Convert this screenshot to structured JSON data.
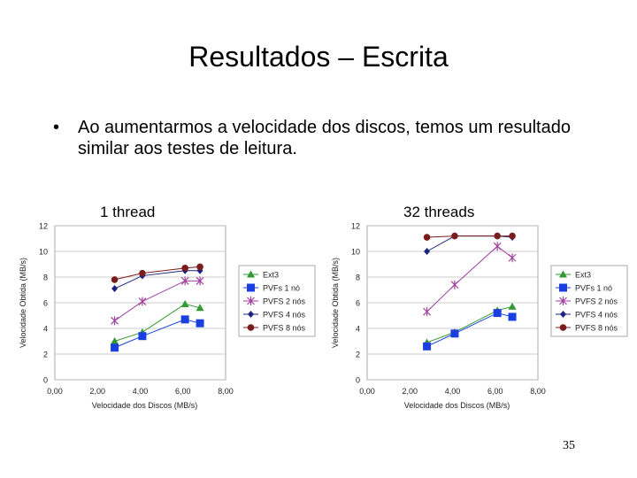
{
  "slide": {
    "title": "Resultados – Escrita",
    "bullet_symbol": "•",
    "bullet_text": "Ao aumentarmos a velocidade dos discos, temos um resultado similar aos testes de leitura.",
    "page_number": "35"
  },
  "chart_data": [
    {
      "type": "line",
      "title": "1 thread",
      "xlabel": "Velocidade dos Discos (MB/s)",
      "ylabel": "Velocidade Obtida (MB/s)",
      "xlim": [
        0,
        8
      ],
      "ylim": [
        0,
        12
      ],
      "x_ticks": [
        "0,00",
        "2,00",
        "4,00",
        "6,00",
        "8,00"
      ],
      "y_ticks": [
        "0",
        "2",
        "4",
        "6",
        "8",
        "10",
        "12"
      ],
      "grid": true,
      "legend_position": "right",
      "series": [
        {
          "name": "Ext3",
          "color": "#339933",
          "marker": "triangle",
          "x": [
            2.8,
            4.1,
            6.1,
            6.8
          ],
          "y": [
            3.0,
            3.7,
            5.9,
            5.6
          ]
        },
        {
          "name": "PVFs 1 nó",
          "color": "#1a3fe0",
          "marker": "square",
          "x": [
            2.8,
            4.1,
            6.1,
            6.8
          ],
          "y": [
            2.5,
            3.4,
            4.7,
            4.4
          ]
        },
        {
          "name": "PVFS 2 nós",
          "color": "#a040a0",
          "marker": "star",
          "x": [
            2.8,
            4.1,
            6.1,
            6.8
          ],
          "y": [
            4.6,
            6.1,
            7.7,
            7.7
          ]
        },
        {
          "name": "PVFS 4 nós",
          "color": "#1a237e",
          "marker": "diamond",
          "x": [
            2.8,
            4.1,
            6.1,
            6.8
          ],
          "y": [
            7.1,
            8.1,
            8.5,
            8.5
          ]
        },
        {
          "name": "PVFS 8 nós",
          "color": "#7a1c1c",
          "marker": "circle",
          "x": [
            2.8,
            4.1,
            6.1,
            6.8
          ],
          "y": [
            7.8,
            8.3,
            8.7,
            8.8
          ]
        }
      ]
    },
    {
      "type": "line",
      "title": "32 threads",
      "xlabel": "Velocidade dos Discos (MB/s)",
      "ylabel": "Velocidade Obtida (MB/s)",
      "xlim": [
        0,
        8
      ],
      "ylim": [
        0,
        12
      ],
      "x_ticks": [
        "0,00",
        "2,00",
        "4,00",
        "6,00",
        "8,00"
      ],
      "y_ticks": [
        "0",
        "2",
        "4",
        "6",
        "8",
        "10",
        "12"
      ],
      "grid": true,
      "legend_position": "right",
      "series": [
        {
          "name": "Ext3",
          "color": "#339933",
          "marker": "triangle",
          "x": [
            2.8,
            4.1,
            6.1,
            6.8
          ],
          "y": [
            2.9,
            3.7,
            5.4,
            5.7
          ]
        },
        {
          "name": "PVFs 1 nó",
          "color": "#1a3fe0",
          "marker": "square",
          "x": [
            2.8,
            4.1,
            6.1,
            6.8
          ],
          "y": [
            2.6,
            3.6,
            5.2,
            4.9
          ]
        },
        {
          "name": "PVFS 2 nós",
          "color": "#a040a0",
          "marker": "star",
          "x": [
            2.8,
            4.1,
            6.1,
            6.8
          ],
          "y": [
            5.3,
            7.4,
            10.4,
            9.5
          ]
        },
        {
          "name": "PVFS 4 nós",
          "color": "#1a237e",
          "marker": "diamond",
          "x": [
            2.8,
            4.1,
            6.1,
            6.8
          ],
          "y": [
            10.0,
            11.2,
            11.2,
            11.1
          ]
        },
        {
          "name": "PVFS 8 nós",
          "color": "#7a1c1c",
          "marker": "circle",
          "x": [
            2.8,
            4.1,
            6.1,
            6.8
          ],
          "y": [
            11.1,
            11.2,
            11.2,
            11.2
          ]
        }
      ]
    }
  ]
}
